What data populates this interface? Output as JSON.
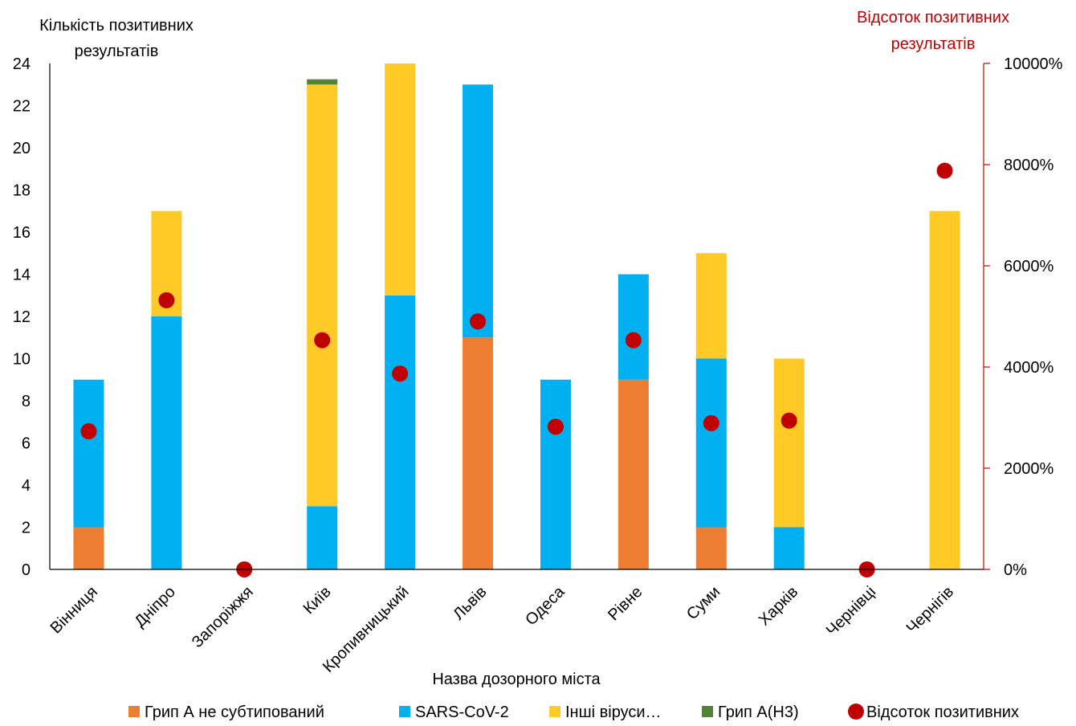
{
  "chart_data": {
    "type": "bar",
    "stacked": true,
    "categories": [
      "Вінниця",
      "Дніпро",
      "Запоріжжя",
      "Київ",
      "Кропивницький",
      "Львів",
      "Одеса",
      "Рівне",
      "Суми",
      "Харків",
      "Чернівці",
      "Чернігів"
    ],
    "series": [
      {
        "name": "Грип А не субтипований",
        "color": "#ED7D31",
        "values": [
          2,
          0,
          0,
          0,
          0,
          11,
          0,
          9,
          2,
          0,
          0,
          0
        ]
      },
      {
        "name": "SARS-CoV-2",
        "color": "#00B0F0",
        "values": [
          7,
          12,
          0,
          3,
          13,
          12,
          9,
          5,
          8,
          2,
          0,
          0
        ]
      },
      {
        "name": "Інші віруси…",
        "color": "#FFC926",
        "values": [
          0,
          5,
          0,
          20,
          11,
          0,
          0,
          0,
          5,
          8,
          0,
          17
        ]
      },
      {
        "name": "Грип А(Н3)",
        "color": "#548235",
        "values": [
          0,
          0,
          0,
          0.25,
          0,
          0,
          0,
          0,
          0,
          0,
          0,
          0
        ]
      }
    ],
    "secondary_series": {
      "name": "Відсоток позитивних",
      "type": "scatter",
      "color": "#C00000",
      "values": [
        2730,
        5320,
        0,
        4530,
        3870,
        4900,
        2820,
        4530,
        2890,
        2940,
        0,
        7880
      ]
    },
    "ylabel": "Кількість позитивних результатів",
    "ylabel_lines": [
      "Кількість позитивних",
      "результатів"
    ],
    "y2label_lines": [
      "Відсоток позитивних",
      "результатів"
    ],
    "xlabel": "Назва  дозорного міста",
    "ylim": [
      0,
      24
    ],
    "yticks": [
      0,
      2,
      4,
      6,
      8,
      10,
      12,
      14,
      16,
      18,
      20,
      22,
      24
    ],
    "y2lim": [
      0,
      10000
    ],
    "y2ticks": [
      "0%",
      "2000%",
      "4000%",
      "6000%",
      "8000%",
      "10000%"
    ],
    "grid": false,
    "legend": "bottom"
  }
}
